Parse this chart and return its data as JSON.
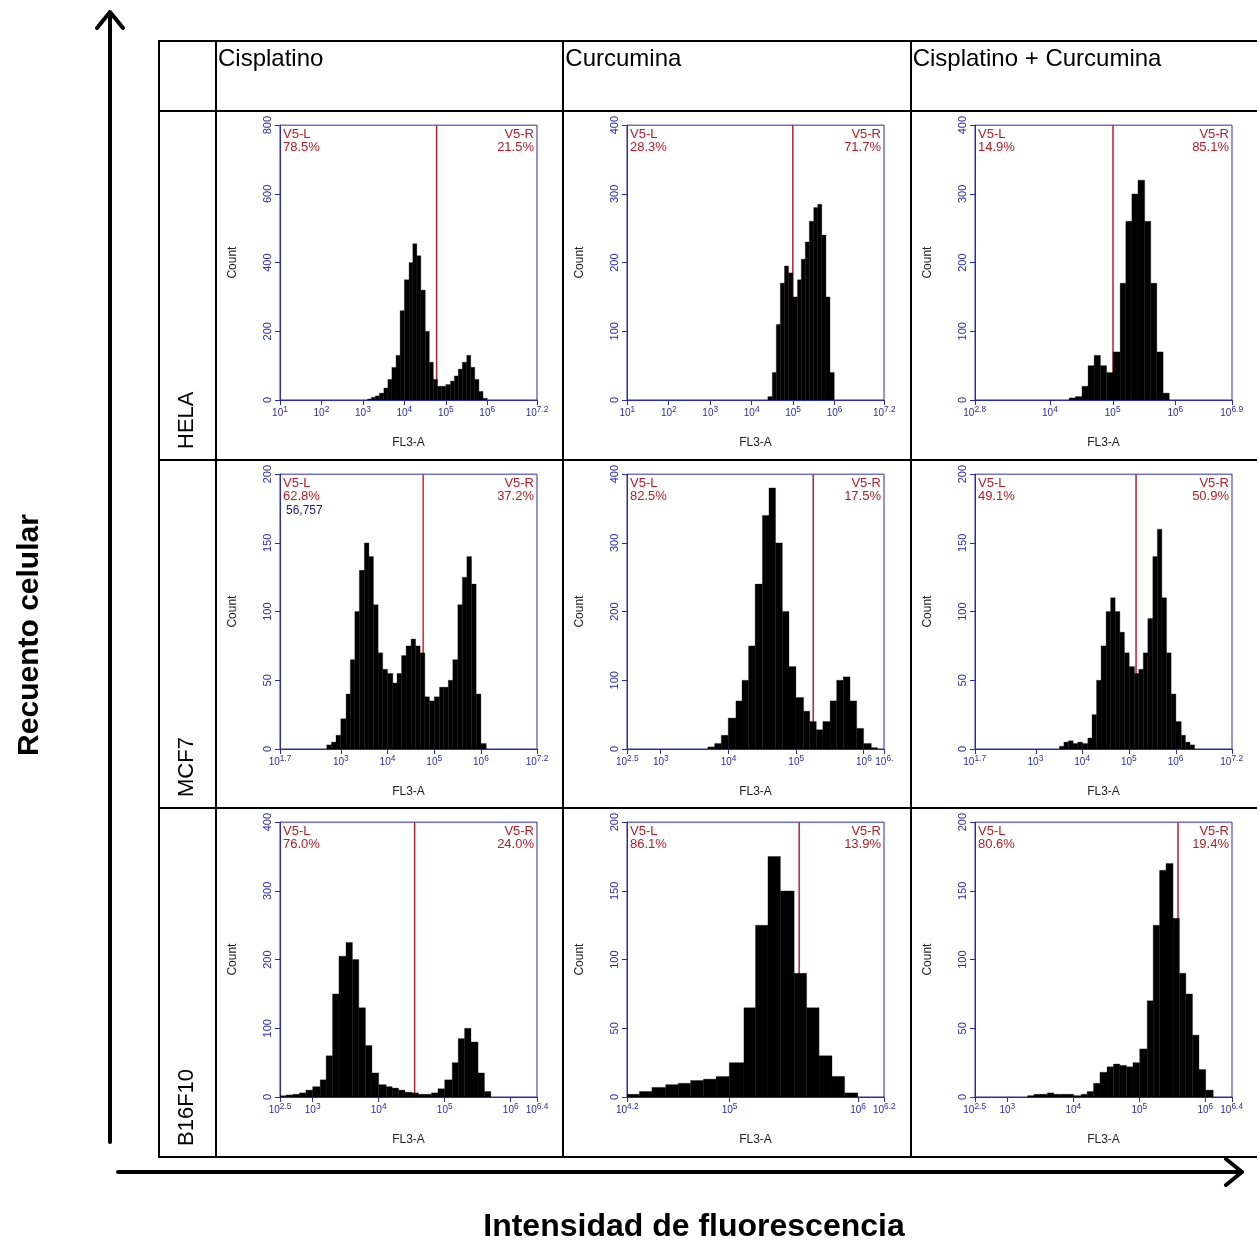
{
  "chart_data": [
    {
      "type": "other",
      "categories": [
        "Cisplatino",
        "Curcumina",
        "Cisplatino + Curcumina"
      ],
      "y_categories": [
        "HELA",
        "MCF7",
        "B16F10"
      ],
      "xlabel": "Intensidad de fluorescencia",
      "ylabel": "Recuento celular"
    },
    {
      "type": "histogram",
      "xlabel": "FL3-A",
      "ylabel": "Count",
      "log": "x",
      "color": "#000000",
      "bins": [
        1300,
        1600,
        2000,
        2500,
        3200,
        4000,
        5000,
        6300,
        7900,
        10000,
        13000,
        16000,
        20000,
        25000,
        32000,
        40000,
        50000,
        63000,
        79000,
        100000,
        130000,
        160000,
        200000,
        250000,
        320000,
        400000,
        500000,
        630000,
        790000,
        1000000
      ],
      "values": [
        3,
        8,
        12,
        20,
        35,
        60,
        95,
        130,
        260,
        350,
        400,
        455,
        420,
        320,
        200,
        110,
        60,
        40,
        40,
        45,
        55,
        70,
        90,
        110,
        130,
        95,
        60,
        25,
        5
      ],
      "xlim": [
        10,
        15850000
      ],
      "xticks": [
        {
          "value": 10,
          "label": "10$^{1}$"
        },
        {
          "value": 100,
          "label": "10$^{2}$"
        },
        {
          "value": 1000,
          "label": "10$^{3}$"
        },
        {
          "value": 10000,
          "label": "10$^{4}$"
        },
        {
          "value": 100000,
          "label": "10$^{5}$"
        },
        {
          "value": 1000000,
          "label": "10$^{6}$"
        },
        {
          "value": 15850000,
          "label": "10$^{7.2}$"
        }
      ],
      "ylim": [
        0,
        800
      ],
      "yticks": [
        0,
        200,
        400,
        600,
        800
      ],
      "ref_lines": [
        {
          "axis": "x",
          "value": 60000,
          "color": "#b22234"
        }
      ],
      "annotations": [
        "V5-L\n78.5%",
        "V5-R\n21.5%"
      ]
    },
    {
      "type": "histogram",
      "xlabel": "FL3-A",
      "ylabel": "Count",
      "log": "x",
      "color": "#000000",
      "bins": [
        25000,
        32000,
        40000,
        50000,
        63000,
        79000,
        100000,
        130000,
        160000,
        200000,
        250000,
        320000,
        400000,
        500000,
        630000,
        790000,
        1000000
      ],
      "values": [
        5,
        40,
        110,
        170,
        195,
        185,
        150,
        175,
        205,
        230,
        260,
        280,
        285,
        240,
        150,
        40
      ],
      "xlim": [
        10,
        15850000
      ],
      "xticks": [
        {
          "value": 10,
          "label": "10$^{1}$"
        },
        {
          "value": 100,
          "label": "10$^{2}$"
        },
        {
          "value": 1000,
          "label": "10$^{3}$"
        },
        {
          "value": 10000,
          "label": "10$^{4}$"
        },
        {
          "value": 100000,
          "label": "10$^{5}$"
        },
        {
          "value": 1000000,
          "label": "10$^{6}$"
        },
        {
          "value": 15850000,
          "label": "10$^{7.2}$"
        }
      ],
      "ylim": [
        0,
        400
      ],
      "yticks": [
        0,
        100,
        200,
        300,
        400
      ],
      "ref_lines": [
        {
          "axis": "x",
          "value": 100000,
          "color": "#b22234"
        }
      ],
      "annotations": [
        "V5-L\n28.3%",
        "V5-R\n71.7%"
      ]
    },
    {
      "type": "histogram",
      "xlabel": "FL3-A",
      "ylabel": "Count",
      "log": "x",
      "color": "#000000",
      "bins": [
        20000,
        25000,
        32000,
        40000,
        50000,
        63000,
        79000,
        100000,
        130000,
        160000,
        200000,
        250000,
        320000,
        400000,
        500000,
        630000,
        790000
      ],
      "values": [
        3,
        5,
        20,
        50,
        65,
        50,
        40,
        70,
        170,
        260,
        300,
        320,
        260,
        170,
        70,
        10
      ],
      "xlim": [
        630,
        7900000
      ],
      "xticks": [
        {
          "value": 630,
          "label": "10$^{2.8}$"
        },
        {
          "value": 10000,
          "label": "10$^{4}$"
        },
        {
          "value": 100000,
          "label": "10$^{5}$"
        },
        {
          "value": 1000000,
          "label": "10$^{6}$"
        },
        {
          "value": 7900000,
          "label": "10$^{6.9}$"
        }
      ],
      "ylim": [
        0,
        400
      ],
      "yticks": [
        0,
        100,
        200,
        300,
        400
      ],
      "ref_lines": [
        {
          "axis": "x",
          "value": 100000,
          "color": "#b22234"
        }
      ],
      "annotations": [
        "V5-L\n14.9%",
        "V5-R\n85.1%"
      ]
    },
    {
      "type": "histogram",
      "xlabel": "FL3-A",
      "ylabel": "Count",
      "log": "x",
      "color": "#000000",
      "bins": [
        500,
        630,
        790,
        1000,
        1300,
        1600,
        2000,
        2500,
        3200,
        4000,
        5000,
        6300,
        7900,
        10000,
        13000,
        16000,
        20000,
        25000,
        32000,
        40000,
        50000,
        63000,
        79000,
        100000,
        130000,
        160000,
        200000,
        250000,
        320000,
        400000,
        500000,
        630000,
        790000,
        1000000,
        1300000
      ],
      "values": [
        3,
        5,
        10,
        22,
        40,
        65,
        100,
        130,
        150,
        140,
        105,
        70,
        58,
        55,
        48,
        55,
        68,
        75,
        80,
        75,
        70,
        38,
        35,
        38,
        45,
        45,
        50,
        65,
        105,
        125,
        140,
        120,
        40,
        4
      ],
      "xlim": [
        50,
        15850000
      ],
      "xticks": [
        {
          "value": 50,
          "label": "10$^{1.7}$"
        },
        {
          "value": 1000,
          "label": "10$^{3}$"
        },
        {
          "value": 10000,
          "label": "10$^{4}$"
        },
        {
          "value": 100000,
          "label": "10$^{5}$"
        },
        {
          "value": 1000000,
          "label": "10$^{6}$"
        },
        {
          "value": 15850000,
          "label": "10$^{7.2}$"
        }
      ],
      "ylim": [
        0,
        200
      ],
      "yticks": [
        0,
        50,
        100,
        150,
        200
      ],
      "ref_lines": [
        {
          "axis": "x",
          "value": 58000,
          "color": "#e0202a"
        }
      ],
      "annotations": [
        "V5-L\n62.8%",
        "V5-R\n37.2%",
        "56,757"
      ]
    },
    {
      "type": "histogram",
      "xlabel": "FL3-A",
      "ylabel": "Count",
      "log": "x",
      "color": "#000000",
      "bins": [
        5000,
        6300,
        7900,
        10000,
        13000,
        16000,
        20000,
        25000,
        32000,
        40000,
        50000,
        63000,
        79000,
        100000,
        130000,
        160000,
        200000,
        250000,
        320000,
        400000,
        500000,
        630000,
        790000,
        1000000,
        1300000,
        1600000
      ],
      "values": [
        3,
        8,
        20,
        45,
        70,
        100,
        150,
        240,
        340,
        380,
        300,
        200,
        120,
        75,
        55,
        40,
        28,
        40,
        70,
        100,
        105,
        70,
        30,
        8,
        2
      ],
      "xlim": [
        320,
        2000000
      ],
      "xticks": [
        {
          "value": 320,
          "label": "10$^{2.5}$"
        },
        {
          "value": 1000,
          "label": "10$^{3}$"
        },
        {
          "value": 10000,
          "label": "10$^{4}$"
        },
        {
          "value": 100000,
          "label": "10$^{5}$"
        },
        {
          "value": 1000000,
          "label": "10$^{6}$"
        },
        {
          "value": 2000000,
          "label": "10$^{6.}$"
        }
      ],
      "ylim": [
        0,
        400
      ],
      "yticks": [
        0,
        100,
        200,
        300,
        400
      ],
      "ref_lines": [
        {
          "axis": "x",
          "value": 180000,
          "color": "#b22234"
        }
      ],
      "annotations": [
        "V5-L\n82.5%",
        "V5-R\n17.5%"
      ]
    },
    {
      "type": "histogram",
      "xlabel": "FL3-A",
      "ylabel": "Count",
      "log": "x",
      "color": "#000000",
      "bins": [
        3200,
        4000,
        5000,
        6300,
        7900,
        10000,
        13000,
        16000,
        20000,
        25000,
        32000,
        40000,
        50000,
        63000,
        79000,
        100000,
        130000,
        160000,
        200000,
        250000,
        320000,
        400000,
        500000,
        630000,
        790000,
        1000000,
        1300000,
        1600000,
        2000000,
        2500000
      ],
      "values": [
        2,
        5,
        6,
        4,
        5,
        4,
        8,
        25,
        50,
        75,
        100,
        110,
        100,
        85,
        70,
        60,
        55,
        58,
        70,
        95,
        140,
        160,
        110,
        70,
        40,
        20,
        10,
        5,
        3
      ],
      "xlim": [
        50,
        15850000
      ],
      "xticks": [
        {
          "value": 50,
          "label": "10$^{1.7}$"
        },
        {
          "value": 1000,
          "label": "10$^{3}$"
        },
        {
          "value": 10000,
          "label": "10$^{4}$"
        },
        {
          "value": 100000,
          "label": "10$^{5}$"
        },
        {
          "value": 1000000,
          "label": "10$^{6}$"
        },
        {
          "value": 15850000,
          "label": "10$^{7.2}$"
        }
      ],
      "ylim": [
        0,
        200
      ],
      "yticks": [
        0,
        50,
        100,
        150,
        200
      ],
      "ref_lines": [
        {
          "axis": "x",
          "value": 140000,
          "color": "#b22234"
        }
      ],
      "annotations": [
        "V5-L\n49.1%",
        "V5-R\n50.9%"
      ]
    },
    {
      "type": "histogram",
      "xlabel": "FL3-A",
      "ylabel": "Count",
      "log": "x",
      "color": "#000000",
      "bins": [
        320,
        400,
        500,
        630,
        790,
        1000,
        1300,
        1600,
        2000,
        2500,
        3200,
        4000,
        5000,
        6300,
        7900,
        10000,
        13000,
        16000,
        20000,
        25000,
        32000,
        40000,
        50000,
        63000,
        79000,
        100000,
        130000,
        160000,
        200000,
        250000,
        320000,
        400000,
        500000
      ],
      "values": [
        2,
        3,
        4,
        6,
        10,
        15,
        25,
        60,
        150,
        205,
        225,
        200,
        130,
        75,
        35,
        18,
        15,
        13,
        10,
        7,
        6,
        4,
        4,
        6,
        12,
        25,
        50,
        85,
        100,
        80,
        35,
        8
      ],
      "xlim": [
        320,
        2500000
      ],
      "xticks": [
        {
          "value": 320,
          "label": "10$^{2.5}$"
        },
        {
          "value": 1000,
          "label": "10$^{3}$"
        },
        {
          "value": 10000,
          "label": "10$^{4}$"
        },
        {
          "value": 100000,
          "label": "10$^{5}$"
        },
        {
          "value": 1000000,
          "label": "10$^{6}$"
        },
        {
          "value": 2500000,
          "label": "10$^{6.4}$"
        }
      ],
      "ylim": [
        0,
        400
      ],
      "yticks": [
        0,
        100,
        200,
        300,
        400
      ],
      "ref_lines": [
        {
          "axis": "x",
          "value": 35000,
          "color": "#b22234"
        }
      ],
      "annotations": [
        "V5-L\n76.0%",
        "V5-R\n24.0%"
      ]
    },
    {
      "type": "histogram",
      "xlabel": "FL3-A",
      "ylabel": "Count",
      "log": "x",
      "color": "#000000",
      "bins": [
        16000,
        20000,
        25000,
        32000,
        40000,
        50000,
        63000,
        79000,
        100000,
        130000,
        160000,
        200000,
        250000,
        320000,
        400000,
        500000,
        630000,
        790000,
        1000000
      ],
      "values": [
        2,
        4,
        7,
        9,
        10,
        12,
        13,
        15,
        25,
        65,
        125,
        175,
        150,
        90,
        65,
        30,
        15,
        3
      ],
      "xlim": [
        16000,
        1600000
      ],
      "xticks": [
        {
          "value": 16000,
          "label": "10$^{4.2}$"
        },
        {
          "value": 100000,
          "label": "10$^{5}$"
        },
        {
          "value": 1000000,
          "label": "10$^{6}$"
        },
        {
          "value": 1600000,
          "label": "10$^{6.2}$"
        }
      ],
      "ylim": [
        0,
        200
      ],
      "yticks": [
        0,
        50,
        100,
        150,
        200
      ],
      "ref_lines": [
        {
          "axis": "x",
          "value": 350000,
          "color": "#b22234"
        }
      ],
      "annotations": [
        "V5-L\n86.1%",
        "V5-R\n13.9%"
      ]
    },
    {
      "type": "histogram",
      "xlabel": "FL3-A",
      "ylabel": "Count",
      "log": "x",
      "color": "#000000",
      "bins": [
        2000,
        2500,
        3200,
        4000,
        5000,
        6300,
        7900,
        10000,
        13000,
        16000,
        20000,
        25000,
        32000,
        40000,
        50000,
        63000,
        79000,
        100000,
        130000,
        160000,
        200000,
        250000,
        320000,
        400000,
        500000,
        630000,
        790000,
        1000000,
        1300000
      ],
      "values": [
        1,
        2,
        2,
        3,
        2,
        2,
        2,
        1,
        2,
        4,
        10,
        18,
        22,
        24,
        23,
        22,
        25,
        35,
        70,
        125,
        165,
        170,
        130,
        90,
        75,
        45,
        20,
        5
      ],
      "xlim": [
        320,
        2500000
      ],
      "xticks": [
        {
          "value": 320,
          "label": "10$^{2.5}$"
        },
        {
          "value": 1000,
          "label": "10$^{3}$"
        },
        {
          "value": 10000,
          "label": "10$^{4}$"
        },
        {
          "value": 100000,
          "label": "10$^{5}$"
        },
        {
          "value": 1000000,
          "label": "10$^{6}$"
        },
        {
          "value": 2500000,
          "label": "10$^{6.4}$"
        }
      ],
      "ylim": [
        0,
        200
      ],
      "yticks": [
        0,
        50,
        100,
        150,
        200
      ],
      "ref_lines": [
        {
          "axis": "x",
          "value": 380000,
          "color": "#b22234"
        }
      ],
      "annotations": [
        "V5-L\n80.6%",
        "V5-R\n19.4%"
      ]
    }
  ]
}
